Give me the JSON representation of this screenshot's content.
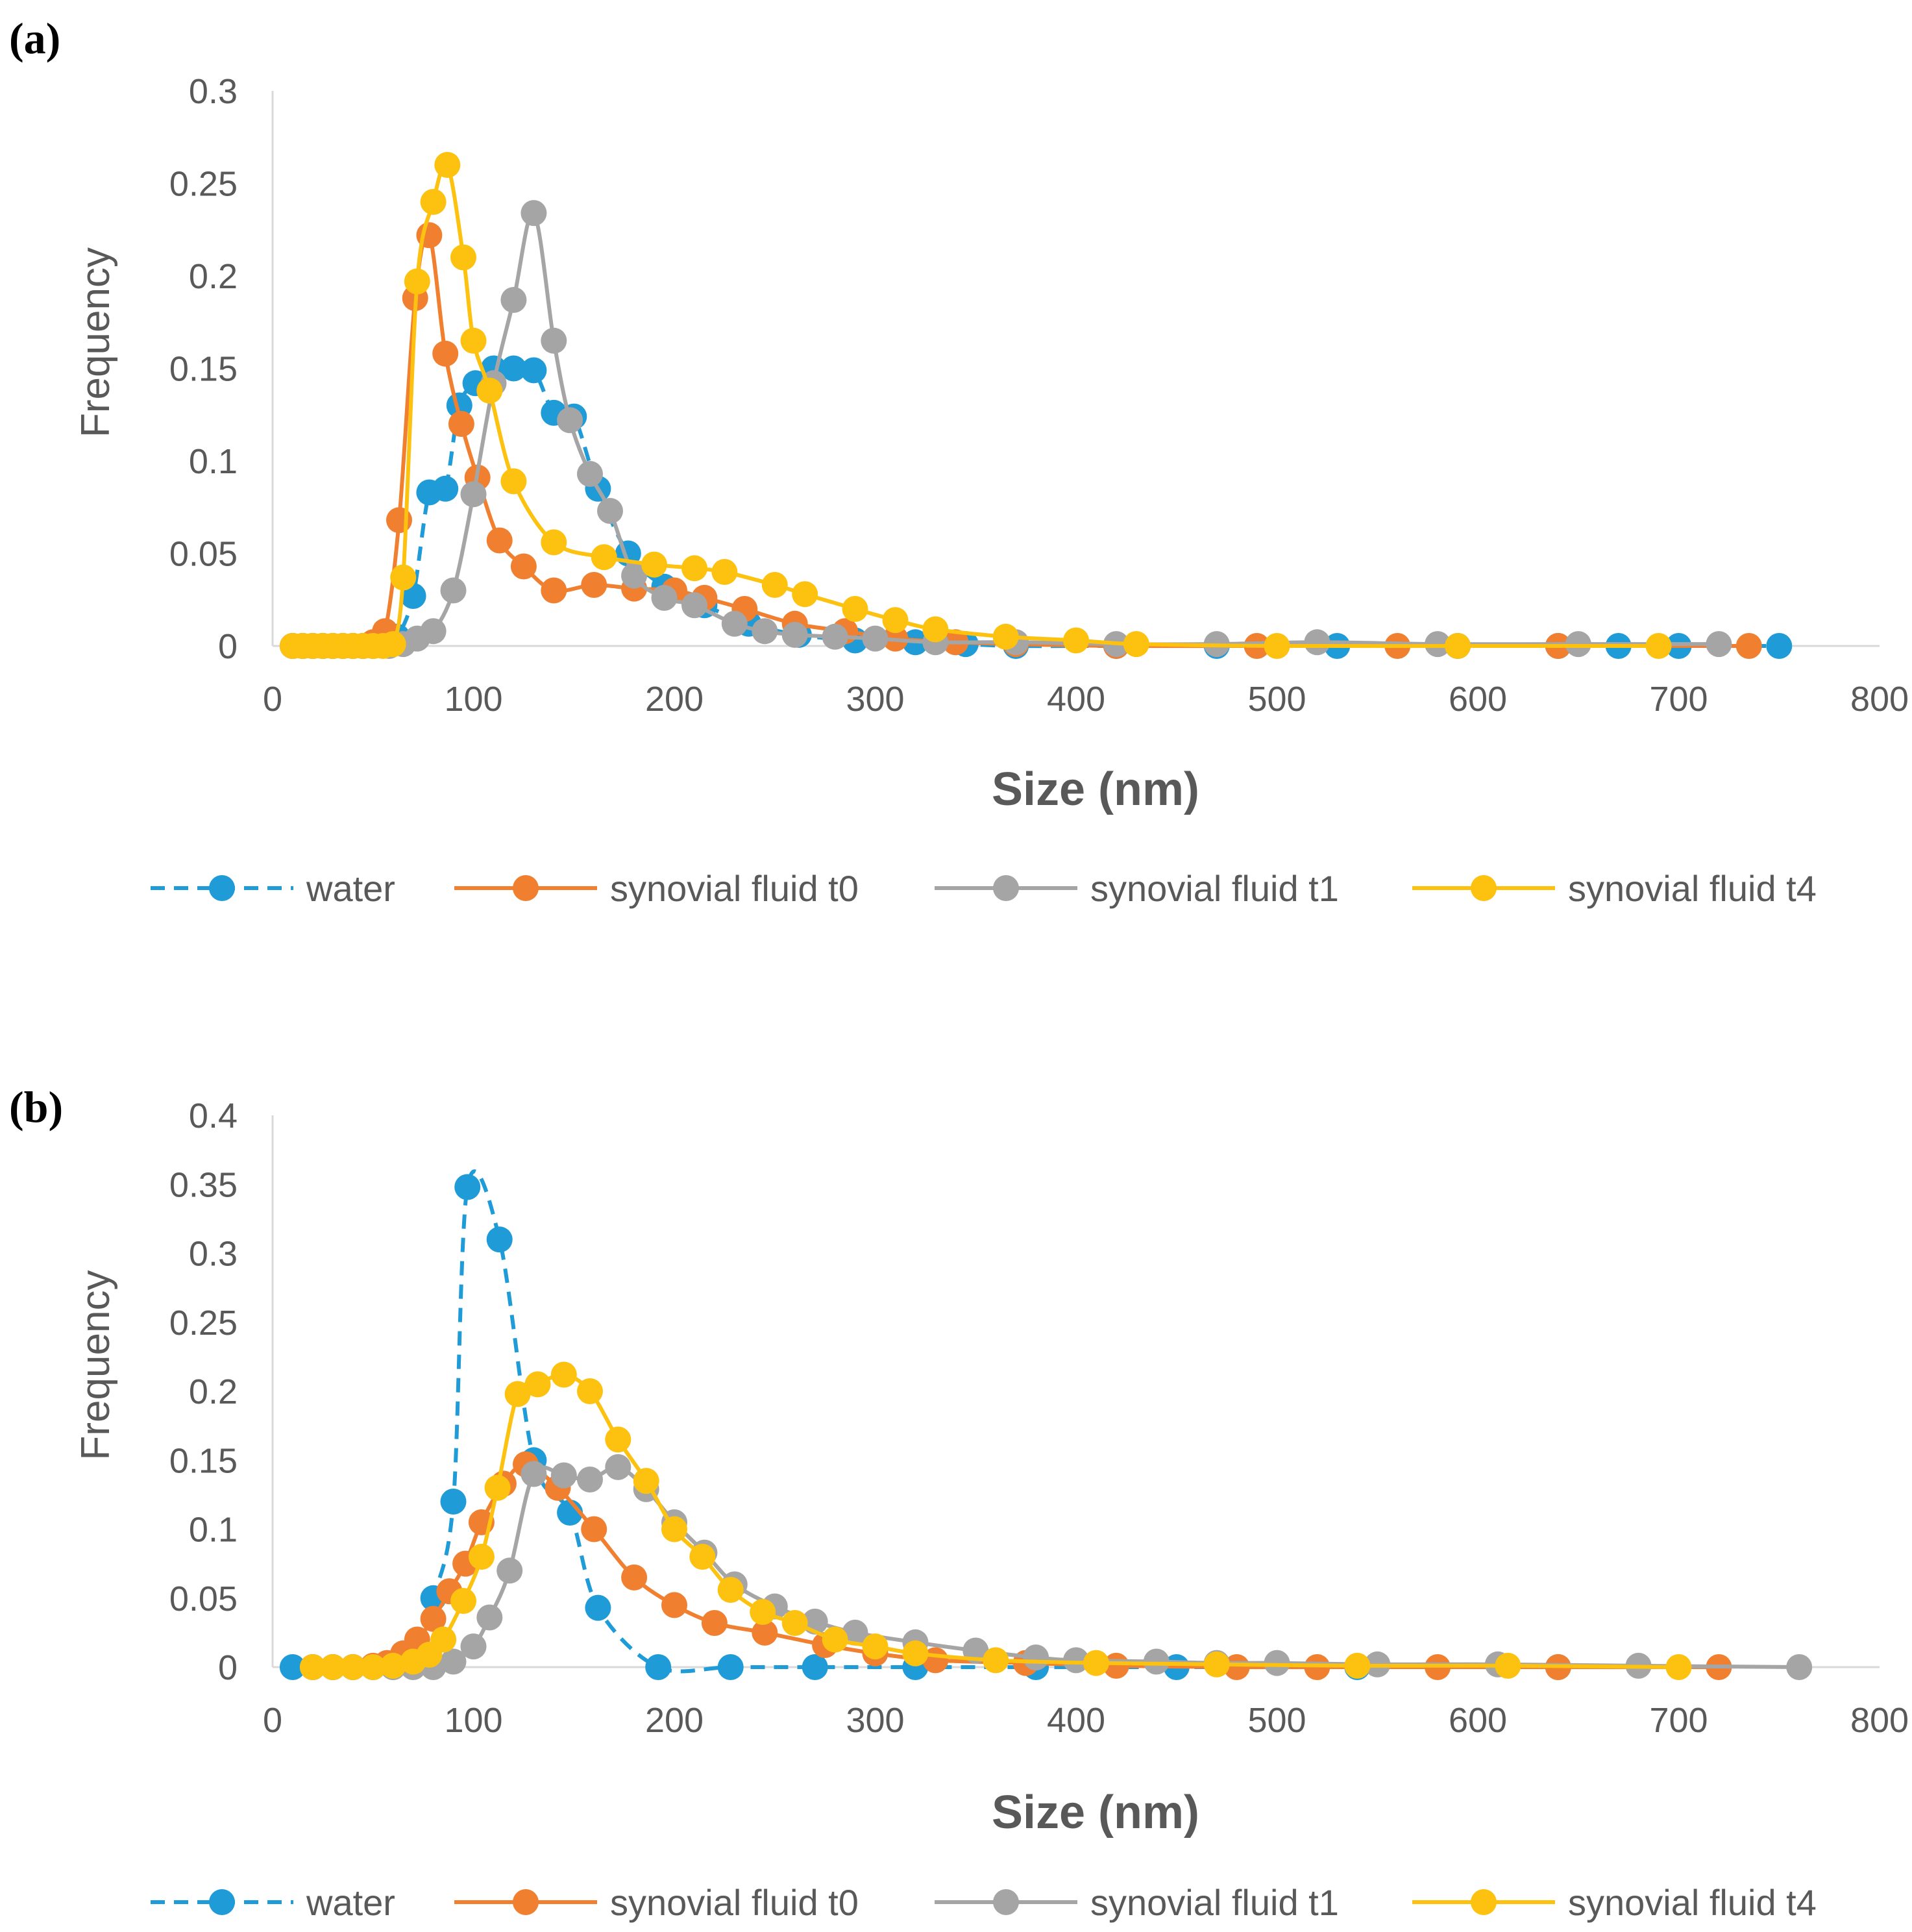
{
  "chart_data": [
    {
      "type": "line",
      "panel_label": "(a)",
      "xlabel": "Size (nm)",
      "ylabel": "Frequency",
      "xlim": [
        0,
        800
      ],
      "ylim": [
        0,
        0.3
      ],
      "xticks": [
        0,
        100,
        200,
        300,
        400,
        500,
        600,
        700,
        800
      ],
      "xtick_labels": [
        "0",
        "100",
        "200",
        "300",
        "400",
        "500",
        "600",
        "700",
        "800"
      ],
      "yticks": [
        0,
        0.05,
        0.1,
        0.15,
        0.2,
        0.25,
        0.3
      ],
      "ytick_labels": [
        "0",
        "0.05",
        "0.1",
        "0.15",
        "0.2",
        "0.25",
        "0.3"
      ],
      "grid": false,
      "legend": "bottom",
      "series": [
        {
          "name": "water",
          "color": "#1f9bd7",
          "dashed": true,
          "x": [
            10,
            15,
            20,
            25,
            30,
            35,
            40,
            45,
            50,
            55,
            62,
            70,
            78,
            86,
            93,
            101,
            110,
            120,
            130,
            140,
            150,
            162,
            177,
            195,
            215,
            237,
            262,
            290,
            320,
            345,
            370,
            420,
            470,
            530,
            590,
            640,
            670,
            700,
            750
          ],
          "y": [
            0,
            0,
            0,
            0,
            0,
            0,
            0,
            0,
            0,
            0.001,
            0.005,
            0.027,
            0.083,
            0.085,
            0.13,
            0.142,
            0.15,
            0.15,
            0.149,
            0.126,
            0.124,
            0.085,
            0.05,
            0.032,
            0.022,
            0.012,
            0.006,
            0.003,
            0.002,
            0.001,
            0,
            0,
            0,
            0,
            0,
            0,
            0,
            0,
            0
          ]
        },
        {
          "name": "synovial fluid t0",
          "color": "#f07f2f",
          "dashed": false,
          "x": [
            10,
            15,
            20,
            25,
            30,
            35,
            40,
            45,
            50,
            56,
            63,
            71,
            78,
            86,
            94,
            102,
            113,
            125,
            140,
            160,
            180,
            200,
            215,
            235,
            260,
            285,
            310,
            340,
            370,
            420,
            490,
            560,
            640,
            735
          ],
          "y": [
            0,
            0,
            0,
            0,
            0,
            0,
            0,
            0,
            0.002,
            0.008,
            0.068,
            0.188,
            0.222,
            0.158,
            0.12,
            0.091,
            0.057,
            0.043,
            0.03,
            0.033,
            0.031,
            0.03,
            0.026,
            0.02,
            0.012,
            0.008,
            0.004,
            0.002,
            0.001,
            0,
            0,
            0,
            0,
            0
          ]
        },
        {
          "name": "synovial fluid t1",
          "color": "#a5a5a5",
          "dashed": false,
          "x": [
            10,
            15,
            20,
            25,
            30,
            35,
            40,
            45,
            50,
            58,
            65,
            72,
            80,
            90,
            100,
            110,
            120,
            130,
            140,
            148,
            158,
            168,
            180,
            195,
            210,
            230,
            245,
            260,
            280,
            300,
            330,
            370,
            420,
            470,
            520,
            580,
            650,
            720
          ],
          "y": [
            0,
            0,
            0,
            0,
            0,
            0,
            0,
            0,
            0,
            0,
            0.001,
            0.004,
            0.008,
            0.03,
            0.082,
            0.142,
            0.187,
            0.234,
            0.165,
            0.122,
            0.093,
            0.073,
            0.038,
            0.026,
            0.022,
            0.012,
            0.008,
            0.006,
            0.005,
            0.004,
            0.002,
            0.002,
            0.001,
            0.001,
            0.002,
            0.001,
            0.001,
            0.001
          ]
        },
        {
          "name": "synovial fluid t4",
          "color": "#fdc10f",
          "dashed": false,
          "x": [
            10,
            15,
            20,
            25,
            30,
            35,
            40,
            45,
            50,
            55,
            60,
            65,
            72,
            80,
            87,
            95,
            100,
            108,
            120,
            140,
            165,
            190,
            210,
            225,
            250,
            265,
            290,
            310,
            330,
            365,
            400,
            430,
            500,
            590,
            690
          ],
          "y": [
            0,
            0,
            0,
            0,
            0,
            0,
            0,
            0,
            0,
            0,
            0.001,
            0.037,
            0.197,
            0.24,
            0.26,
            0.21,
            0.165,
            0.138,
            0.089,
            0.056,
            0.048,
            0.044,
            0.042,
            0.04,
            0.033,
            0.028,
            0.02,
            0.014,
            0.009,
            0.005,
            0.003,
            0.001,
            0,
            0,
            0
          ]
        }
      ]
    },
    {
      "type": "line",
      "panel_label": "(b)",
      "xlabel": "Size (nm)",
      "ylabel": "Frequency",
      "xlim": [
        0,
        800
      ],
      "ylim": [
        0,
        0.4
      ],
      "xticks": [
        0,
        100,
        200,
        300,
        400,
        500,
        600,
        700,
        800
      ],
      "xtick_labels": [
        "0",
        "100",
        "200",
        "300",
        "400",
        "500",
        "600",
        "700",
        "800"
      ],
      "yticks": [
        0,
        0.05,
        0.1,
        0.15,
        0.2,
        0.25,
        0.3,
        0.35,
        0.4
      ],
      "ytick_labels": [
        "0",
        "0.05",
        "0.1",
        "0.15",
        "0.2",
        "0.25",
        "0.3",
        "0.35",
        "0.4"
      ],
      "grid": false,
      "legend": "bottom",
      "series": [
        {
          "name": "water",
          "color": "#1f9bd7",
          "dashed": true,
          "x": [
            10,
            20,
            30,
            40,
            50,
            60,
            70,
            80,
            90,
            97,
            113,
            130,
            148,
            162,
            192,
            228,
            270,
            320,
            380,
            450,
            540,
            640
          ],
          "y": [
            0,
            0,
            0,
            0,
            0,
            0,
            0.005,
            0.05,
            0.12,
            0.348,
            0.31,
            0.15,
            0.112,
            0.043,
            0,
            0,
            0,
            0,
            0,
            0,
            0,
            0
          ]
        },
        {
          "name": "synovial fluid t0",
          "color": "#f07f2f",
          "dashed": false,
          "x": [
            20,
            30,
            40,
            50,
            57,
            65,
            72,
            80,
            88,
            96,
            104,
            115,
            126,
            142,
            160,
            180,
            200,
            220,
            245,
            275,
            300,
            330,
            375,
            420,
            480,
            520,
            580,
            640,
            720
          ],
          "y": [
            0,
            0,
            0,
            0.001,
            0.003,
            0.01,
            0.02,
            0.035,
            0.055,
            0.075,
            0.105,
            0.133,
            0.147,
            0.13,
            0.1,
            0.065,
            0.045,
            0.032,
            0.025,
            0.016,
            0.01,
            0.005,
            0.003,
            0.001,
            0,
            0,
            0,
            0,
            0
          ]
        },
        {
          "name": "synovial fluid t1",
          "color": "#a5a5a5",
          "dashed": false,
          "x": [
            20,
            30,
            40,
            50,
            60,
            70,
            80,
            90,
            100,
            108,
            118,
            130,
            145,
            158,
            172,
            186,
            200,
            215,
            230,
            250,
            270,
            290,
            320,
            350,
            380,
            400,
            440,
            470,
            500,
            550,
            610,
            680,
            760
          ],
          "y": [
            0,
            0,
            0,
            0,
            0,
            0,
            0,
            0.004,
            0.015,
            0.036,
            0.07,
            0.14,
            0.139,
            0.136,
            0.145,
            0.129,
            0.105,
            0.083,
            0.06,
            0.044,
            0.033,
            0.025,
            0.018,
            0.012,
            0.007,
            0.005,
            0.004,
            0.003,
            0.003,
            0.002,
            0.002,
            0.001,
            0
          ]
        },
        {
          "name": "synovial fluid t4",
          "color": "#fdc10f",
          "dashed": false,
          "x": [
            20,
            30,
            40,
            50,
            60,
            70,
            78,
            85,
            95,
            104,
            112,
            122,
            132,
            145,
            158,
            172,
            186,
            200,
            214,
            228,
            244,
            260,
            280,
            300,
            320,
            360,
            410,
            470,
            540,
            615,
            700
          ],
          "y": [
            0,
            0,
            0,
            0,
            0.001,
            0.004,
            0.009,
            0.02,
            0.048,
            0.08,
            0.13,
            0.198,
            0.205,
            0.212,
            0.2,
            0.165,
            0.135,
            0.1,
            0.08,
            0.056,
            0.04,
            0.032,
            0.02,
            0.015,
            0.01,
            0.005,
            0.003,
            0.002,
            0.001,
            0.001,
            0
          ]
        }
      ]
    }
  ]
}
